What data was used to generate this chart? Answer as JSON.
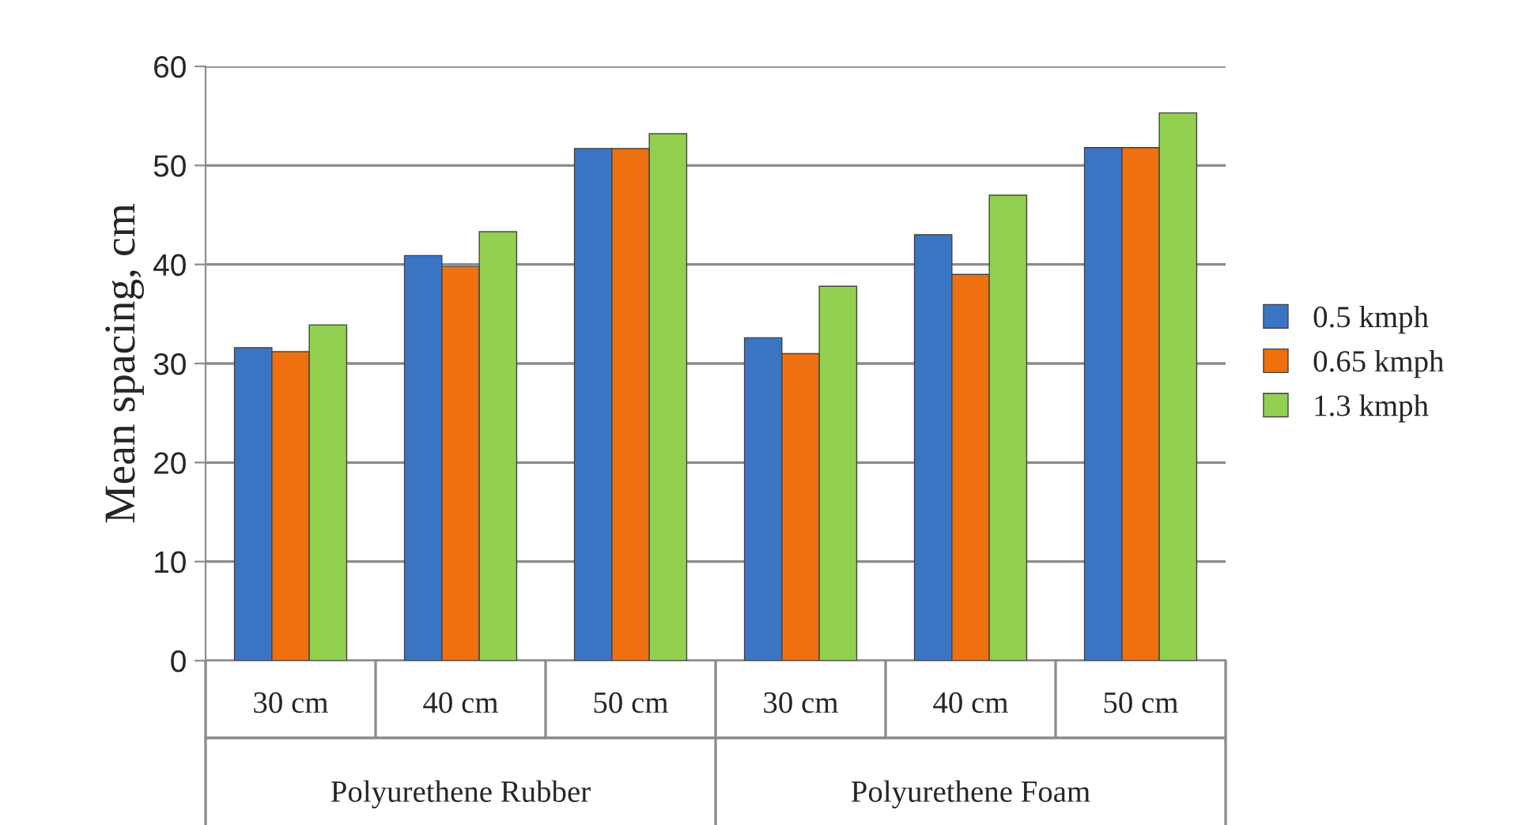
{
  "chart_data": {
    "type": "bar",
    "ylabel": "Mean spacing, cm",
    "categories": [
      "30 cm",
      "40 cm",
      "50 cm",
      "30 cm",
      "40 cm",
      "50 cm"
    ],
    "series": [
      {
        "name": "0.5 kmph",
        "color": "#3a75c4",
        "values": [
          31.6,
          40.9,
          51.7,
          32.6,
          43.0,
          51.8
        ]
      },
      {
        "name": "0.65 kmph",
        "color": "#ee700e",
        "values": [
          31.2,
          39.8,
          51.7,
          31.0,
          39.0,
          51.8
        ]
      },
      {
        "name": "1.3 kmph",
        "color": "#92d050",
        "values": [
          33.9,
          43.3,
          53.2,
          37.8,
          47.0,
          55.3
        ]
      }
    ],
    "annotations": [
      "Polyurethene Rubber",
      "Polyurethene Foam"
    ],
    "ylim": [
      0,
      60
    ],
    "yticks": [
      0,
      10,
      20,
      30,
      40,
      50,
      60
    ],
    "grid": "y",
    "legend": "right"
  }
}
